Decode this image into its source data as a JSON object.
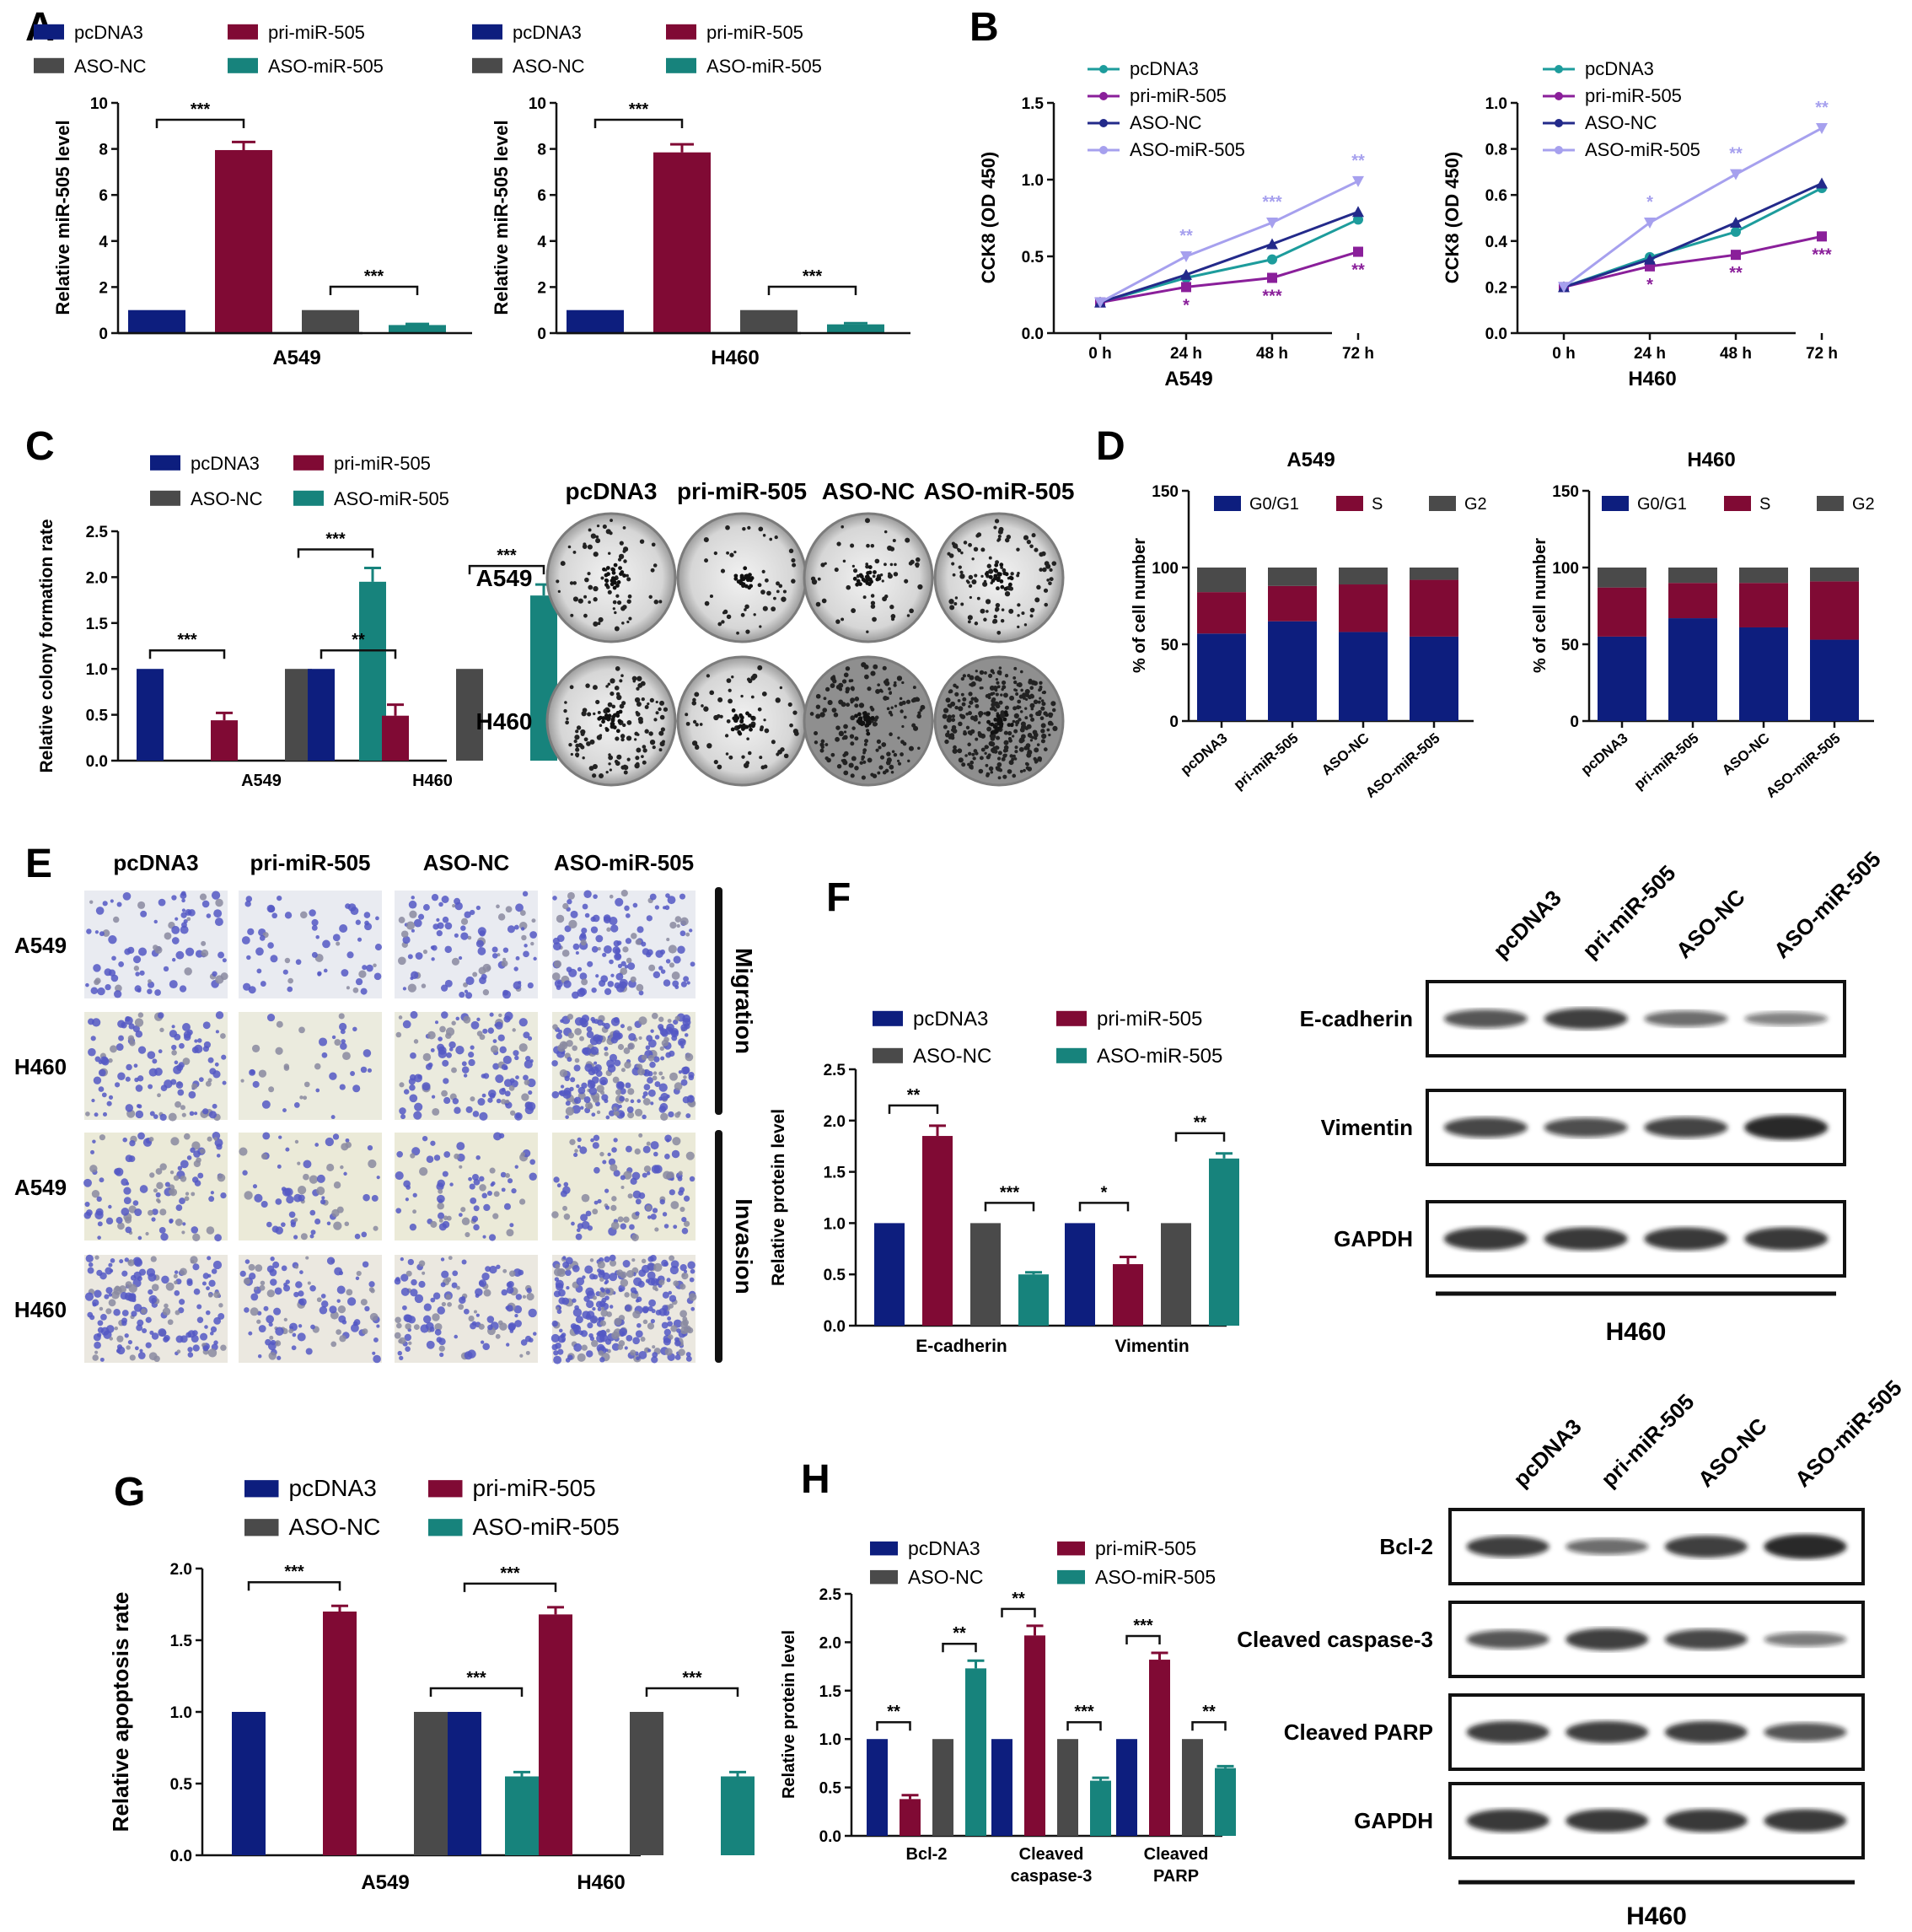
{
  "colors": {
    "pcDNA3": "#0d1e7e",
    "pri-miR-505": "#800a34",
    "ASO-NC": "#4a4a4a",
    "ASO-miR-505": "#17837c",
    "line_pcDNA3": "#1d9c9c",
    "line_pri": "#8a1f9a",
    "line_asonc": "#232a8a",
    "line_asomir": "#a6a0ee"
  },
  "panel_labels": {
    "a": "A",
    "b": "B",
    "c": "C",
    "d": "D",
    "e": "E",
    "f": "F",
    "g": "G",
    "h": "H"
  },
  "groups": [
    "pcDNA3",
    "pri-miR-505",
    "ASO-NC",
    "ASO-miR-505"
  ],
  "chart_data": [
    {
      "id": "A-A549",
      "type": "bar",
      "panel": "A",
      "categories": [
        "pcDNA3",
        "pri-miR-505",
        "ASO-NC",
        "ASO-miR-505"
      ],
      "values": [
        1.0,
        7.95,
        1.0,
        0.35
      ],
      "errors": [
        0,
        0.35,
        0,
        0.05
      ],
      "xlabel": "A549",
      "ylabel": "Relative miR-505 level",
      "ylim": [
        0,
        10
      ],
      "yticks": [
        "0",
        "2",
        "4",
        "6",
        "8",
        "10"
      ],
      "significance": [
        "***",
        "***"
      ],
      "legend": [
        "pcDNA3",
        "pri-miR-505",
        "ASO-NC",
        "ASO-miR-505"
      ]
    },
    {
      "id": "A-H460",
      "type": "bar",
      "panel": "A",
      "categories": [
        "pcDNA3",
        "pri-miR-505",
        "ASO-NC",
        "ASO-miR-505"
      ],
      "values": [
        1.0,
        7.85,
        1.0,
        0.38
      ],
      "errors": [
        0,
        0.35,
        0,
        0.05
      ],
      "xlabel": "H460",
      "ylabel": "Relative miR-505 level",
      "ylim": [
        0,
        10
      ],
      "yticks": [
        "0",
        "2",
        "4",
        "6",
        "8",
        "10"
      ],
      "significance": [
        "***",
        "***"
      ],
      "legend": [
        "pcDNA3",
        "pri-miR-505",
        "ASO-NC",
        "ASO-miR-505"
      ]
    },
    {
      "id": "B-A549",
      "type": "line",
      "panel": "B",
      "x": [
        "0 h",
        "24 h",
        "48 h",
        "72 h"
      ],
      "series": [
        {
          "name": "pcDNA3",
          "values": [
            0.2,
            0.36,
            0.48,
            0.74
          ]
        },
        {
          "name": "pri-miR-505",
          "values": [
            0.2,
            0.3,
            0.36,
            0.53
          ]
        },
        {
          "name": "ASO-NC",
          "values": [
            0.2,
            0.38,
            0.58,
            0.79
          ]
        },
        {
          "name": "ASO-miR-505",
          "values": [
            0.2,
            0.5,
            0.72,
            0.99
          ]
        }
      ],
      "xlabel": "A549",
      "ylabel": "CCK8 (OD 450)",
      "ylim": [
        0,
        1.5
      ],
      "yticks": [
        "0.0",
        "0.5",
        "1.0",
        "1.5"
      ],
      "sig_upper": [
        "**",
        "***",
        "**"
      ],
      "sig_lower": [
        "*",
        "***",
        "**"
      ]
    },
    {
      "id": "B-H460",
      "type": "line",
      "panel": "B",
      "x": [
        "0 h",
        "24 h",
        "48 h",
        "72 h"
      ],
      "series": [
        {
          "name": "pcDNA3",
          "values": [
            0.2,
            0.33,
            0.44,
            0.63
          ]
        },
        {
          "name": "pri-miR-505",
          "values": [
            0.2,
            0.29,
            0.34,
            0.42
          ]
        },
        {
          "name": "ASO-NC",
          "values": [
            0.2,
            0.32,
            0.48,
            0.65
          ]
        },
        {
          "name": "ASO-miR-505",
          "values": [
            0.2,
            0.48,
            0.69,
            0.89
          ]
        }
      ],
      "xlabel": "H460",
      "ylabel": "CCK8 (OD 450)",
      "ylim": [
        0,
        1.0
      ],
      "yticks": [
        "0.0",
        "0.2",
        "0.4",
        "0.6",
        "0.8",
        "1.0"
      ],
      "sig_upper": [
        "*",
        "**",
        "**"
      ],
      "sig_lower": [
        "*",
        "**",
        "***"
      ]
    },
    {
      "id": "C",
      "type": "bar",
      "panel": "C",
      "categories": [
        "A549",
        "H460"
      ],
      "series": [
        {
          "name": "pcDNA3",
          "values": [
            1.0,
            1.0
          ],
          "errors": [
            0,
            0
          ]
        },
        {
          "name": "pri-miR-505",
          "values": [
            0.44,
            0.49
          ],
          "errors": [
            0.08,
            0.12
          ]
        },
        {
          "name": "ASO-NC",
          "values": [
            1.0,
            1.0
          ],
          "errors": [
            0,
            0
          ]
        },
        {
          "name": "ASO-miR-505",
          "values": [
            1.95,
            1.8
          ],
          "errors": [
            0.15,
            0.12
          ]
        }
      ],
      "ylabel": "Relative colony formation rate",
      "ylim": [
        0,
        2.5
      ],
      "yticks": [
        "0.0",
        "0.5",
        "1.0",
        "1.5",
        "2.0",
        "2.5"
      ],
      "significance": [
        [
          "***",
          "***"
        ],
        [
          "**",
          "***"
        ]
      ]
    },
    {
      "id": "D-A549",
      "type": "bar",
      "panel": "D",
      "stacked": true,
      "title": "A549",
      "categories": [
        "pcDNA3",
        "pri-miR-505",
        "ASO-NC",
        "ASO-miR-505"
      ],
      "series": [
        {
          "name": "G0/G1",
          "values": [
            57,
            65,
            58,
            55
          ]
        },
        {
          "name": "S",
          "values": [
            27,
            23,
            31,
            37
          ]
        },
        {
          "name": "G2",
          "values": [
            16,
            12,
            11,
            8
          ]
        }
      ],
      "ylabel": "% of cell number",
      "ylim": [
        0,
        150
      ],
      "yticks": [
        "0",
        "50",
        "100",
        "150"
      ],
      "colors": [
        "#0d1e7e",
        "#800a34",
        "#4a4a4a"
      ]
    },
    {
      "id": "D-H460",
      "type": "bar",
      "panel": "D",
      "stacked": true,
      "title": "H460",
      "categories": [
        "pcDNA3",
        "pri-miR-505",
        "ASO-NC",
        "ASO-miR-505"
      ],
      "series": [
        {
          "name": "G0/G1",
          "values": [
            55,
            67,
            61,
            53
          ]
        },
        {
          "name": "S",
          "values": [
            32,
            23,
            29,
            38
          ]
        },
        {
          "name": "G2",
          "values": [
            13,
            10,
            10,
            9
          ]
        }
      ],
      "ylabel": "% of cell number",
      "ylim": [
        0,
        150
      ],
      "yticks": [
        "0",
        "50",
        "100",
        "150"
      ],
      "colors": [
        "#0d1e7e",
        "#800a34",
        "#4a4a4a"
      ]
    },
    {
      "id": "F",
      "type": "bar",
      "panel": "F",
      "categories": [
        "E-cadherin",
        "Vimentin"
      ],
      "series": [
        {
          "name": "pcDNA3",
          "values": [
            1.0,
            1.0
          ],
          "errors": [
            0,
            0
          ]
        },
        {
          "name": "pri-miR-505",
          "values": [
            1.85,
            0.6
          ],
          "errors": [
            0.1,
            0.07
          ]
        },
        {
          "name": "ASO-NC",
          "values": [
            1.0,
            1.0
          ],
          "errors": [
            0,
            0
          ]
        },
        {
          "name": "ASO-miR-505",
          "values": [
            0.5,
            1.63
          ],
          "errors": [
            0.02,
            0.05
          ]
        }
      ],
      "ylabel": "Relative protein level",
      "ylim": [
        0,
        2.5
      ],
      "yticks": [
        "0.0",
        "0.5",
        "1.0",
        "1.5",
        "2.0",
        "2.5"
      ],
      "significance": [
        [
          "**",
          "***"
        ],
        [
          "*",
          "**"
        ]
      ]
    },
    {
      "id": "G",
      "type": "bar",
      "panel": "G",
      "categories": [
        "A549",
        "H460"
      ],
      "series": [
        {
          "name": "pcDNA3",
          "values": [
            1.0,
            1.0
          ],
          "errors": [
            0,
            0
          ]
        },
        {
          "name": "pri-miR-505",
          "values": [
            1.7,
            1.68
          ],
          "errors": [
            0.04,
            0.05
          ]
        },
        {
          "name": "ASO-NC",
          "values": [
            1.0,
            1.0
          ],
          "errors": [
            0,
            0
          ]
        },
        {
          "name": "ASO-miR-505",
          "values": [
            0.55,
            0.55
          ],
          "errors": [
            0.03,
            0.03
          ]
        }
      ],
      "ylabel": "Relative apoptosis rate",
      "ylim": [
        0,
        2.0
      ],
      "yticks": [
        "0.0",
        "0.5",
        "1.0",
        "1.5",
        "2.0"
      ],
      "significance": [
        [
          "***",
          "***"
        ],
        [
          "***",
          "***"
        ]
      ]
    },
    {
      "id": "H",
      "type": "bar",
      "panel": "H",
      "categories": [
        "Bcl-2",
        "Cleaved caspase-3",
        "Cleaved PARP"
      ],
      "category_lines": [
        [
          "Bcl-2"
        ],
        [
          "Cleaved",
          "caspase-3"
        ],
        [
          "Cleaved",
          "PARP"
        ]
      ],
      "series": [
        {
          "name": "pcDNA3",
          "values": [
            1.0,
            1.0,
            1.0
          ],
          "errors": [
            0,
            0,
            0
          ]
        },
        {
          "name": "pri-miR-505",
          "values": [
            0.38,
            2.07,
            1.82
          ],
          "errors": [
            0.04,
            0.1,
            0.07
          ]
        },
        {
          "name": "ASO-NC",
          "values": [
            1.0,
            1.0,
            1.0
          ],
          "errors": [
            0,
            0,
            0
          ]
        },
        {
          "name": "ASO-miR-505",
          "values": [
            1.73,
            0.57,
            0.7
          ],
          "errors": [
            0.08,
            0.03,
            0.02
          ]
        }
      ],
      "ylabel": "Relative protein level",
      "ylim": [
        0,
        2.5
      ],
      "yticks": [
        "0.0",
        "0.5",
        "1.0",
        "1.5",
        "2.0",
        "2.5"
      ],
      "significance": [
        [
          "**",
          "**"
        ],
        [
          "**",
          "***"
        ],
        [
          "***",
          "**"
        ]
      ]
    }
  ],
  "colony": {
    "col_headers": [
      "pcDNA3",
      "pri-miR-505",
      "ASO-NC",
      "ASO-miR-505"
    ],
    "row_labels": [
      "A549",
      "H460"
    ]
  },
  "transwell": {
    "col_headers": [
      "pcDNA3",
      "pri-miR-505",
      "ASO-NC",
      "ASO-miR-505"
    ],
    "row_labels": [
      "A549",
      "H460",
      "A549",
      "H460"
    ],
    "side_labels": [
      "Migration",
      "Invasion"
    ]
  },
  "blot_f": {
    "col_headers": [
      "pcDNA3",
      "pri-miR-505",
      "ASO-NC",
      "ASO-miR-505"
    ],
    "proteins": [
      "E-cadherin",
      "Vimentin",
      "GAPDH"
    ],
    "cell_line": "H460",
    "band_intensity": [
      [
        0.6,
        0.75,
        0.45,
        0.3
      ],
      [
        0.7,
        0.65,
        0.72,
        0.95
      ],
      [
        0.85,
        0.85,
        0.85,
        0.85
      ]
    ]
  },
  "blot_h": {
    "col_headers": [
      "pcDNA3",
      "pri-miR-505",
      "ASO-NC",
      "ASO-miR-505"
    ],
    "proteins": [
      "Bcl-2",
      "Cleaved caspase-3",
      "Cleaved PARP",
      "GAPDH"
    ],
    "cell_line": "H460",
    "band_intensity": [
      [
        0.75,
        0.45,
        0.8,
        0.95
      ],
      [
        0.6,
        0.8,
        0.7,
        0.35
      ],
      [
        0.8,
        0.8,
        0.8,
        0.6
      ],
      [
        0.85,
        0.85,
        0.85,
        0.85
      ]
    ]
  }
}
